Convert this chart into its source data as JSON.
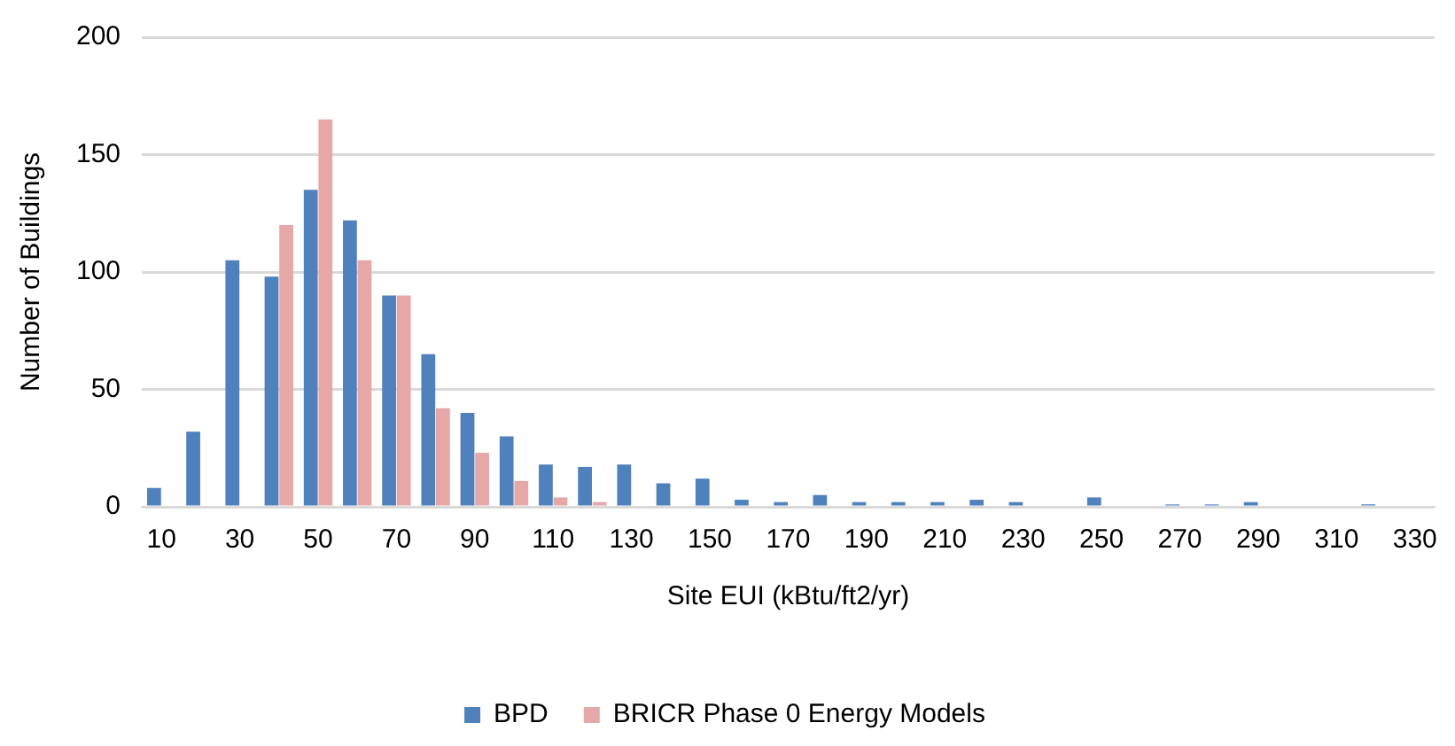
{
  "chart_data": {
    "type": "bar",
    "xlabel": "Site EUI (kBtu/ft2/yr)",
    "ylabel": "Number of Buildings",
    "categories": [
      "10",
      null,
      "30",
      null,
      "50",
      null,
      "70",
      null,
      "90",
      null,
      "110",
      null,
      "130",
      null,
      "150",
      null,
      "170",
      null,
      "190",
      null,
      "210",
      null,
      "230",
      null,
      "250",
      null,
      "270",
      null,
      "290",
      null,
      "310",
      null,
      "330"
    ],
    "series": [
      {
        "name": "BPD",
        "color": "#4f81bd",
        "values": [
          8,
          32,
          105,
          98,
          135,
          122,
          90,
          65,
          40,
          30,
          18,
          17,
          18,
          10,
          12,
          3,
          2,
          5,
          2,
          2,
          2,
          3,
          2,
          0,
          4,
          0,
          1,
          1,
          2,
          0,
          0,
          1,
          0
        ]
      },
      {
        "name": "BRICR Phase 0 Energy Models",
        "color": "#e6a7a7",
        "values": [
          0,
          0,
          0,
          120,
          165,
          105,
          90,
          42,
          23,
          11,
          4,
          2,
          0,
          0,
          0,
          0,
          0,
          0,
          0,
          0,
          0,
          0,
          0,
          0,
          0,
          0,
          0,
          0,
          0,
          0,
          0,
          0,
          0
        ]
      }
    ],
    "ylim": [
      0,
      200
    ],
    "yticks": [
      0,
      50,
      100,
      150,
      200
    ],
    "grid": "y",
    "legend": "bottom"
  }
}
